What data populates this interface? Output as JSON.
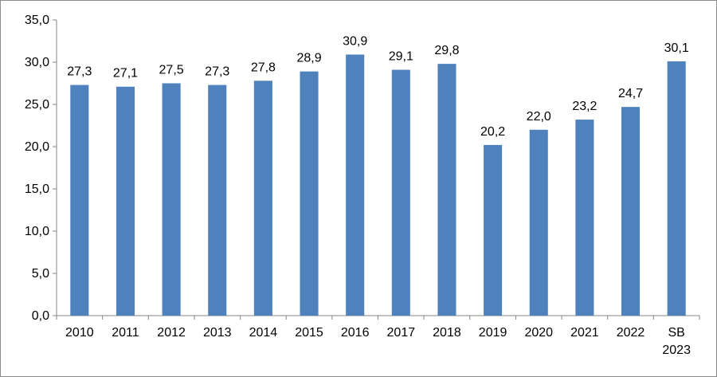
{
  "chart_data": {
    "type": "bar",
    "categories": [
      "2010",
      "2011",
      "2012",
      "2013",
      "2014",
      "2015",
      "2016",
      "2017",
      "2018",
      "2019",
      "2020",
      "2021",
      "2022",
      "SB 2023"
    ],
    "category_lines": [
      [
        "2010"
      ],
      [
        "2011"
      ],
      [
        "2012"
      ],
      [
        "2013"
      ],
      [
        "2014"
      ],
      [
        "2015"
      ],
      [
        "2016"
      ],
      [
        "2017"
      ],
      [
        "2018"
      ],
      [
        "2019"
      ],
      [
        "2020"
      ],
      [
        "2021"
      ],
      [
        "2022"
      ],
      [
        "SB",
        "2023"
      ]
    ],
    "values": [
      27.3,
      27.1,
      27.5,
      27.3,
      27.8,
      28.9,
      30.9,
      29.1,
      29.8,
      20.2,
      22.0,
      23.2,
      24.7,
      30.1
    ],
    "value_labels": [
      "27,3",
      "27,1",
      "27,5",
      "27,3",
      "27,8",
      "28,9",
      "30,9",
      "29,1",
      "29,8",
      "20,2",
      "22,0",
      "23,2",
      "24,7",
      "30,1"
    ],
    "ylim": [
      0,
      35
    ],
    "yticks": [
      0,
      5,
      10,
      15,
      20,
      25,
      30,
      35
    ],
    "ytick_labels": [
      "0,0",
      "5,0",
      "10,0",
      "15,0",
      "20,0",
      "25,0",
      "30,0",
      "35,0"
    ],
    "grid": false,
    "legend": "none",
    "bar_color": "#4f81bd",
    "axis_color": "#868686"
  }
}
